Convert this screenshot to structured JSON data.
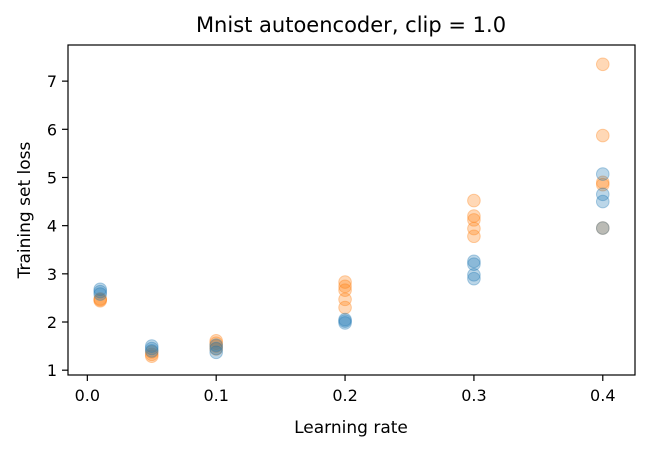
{
  "chart_data": {
    "type": "scatter",
    "title": "Mnist autoencoder, clip = 1.0",
    "xlabel": "Learning rate",
    "ylabel": "Training set loss",
    "xlim": [
      -0.015,
      0.425
    ],
    "ylim": [
      0.9,
      7.75
    ],
    "xticks": [
      0.0,
      0.1,
      0.2,
      0.3,
      0.4
    ],
    "xtick_labels": [
      "0.0",
      "0.1",
      "0.2",
      "0.3",
      "0.4"
    ],
    "yticks": [
      1,
      2,
      3,
      4,
      5,
      6,
      7
    ],
    "ytick_labels": [
      "1",
      "2",
      "3",
      "4",
      "5",
      "6",
      "7"
    ],
    "grid": false,
    "legend": "none",
    "series": [
      {
        "color": "#ff7f0e",
        "alpha": 0.3,
        "points": [
          {
            "x": 0.01,
            "y": 2.44
          },
          {
            "x": 0.01,
            "y": 2.46
          },
          {
            "x": 0.01,
            "y": 2.48
          },
          {
            "x": 0.05,
            "y": 1.29
          },
          {
            "x": 0.05,
            "y": 1.33
          },
          {
            "x": 0.05,
            "y": 1.38
          },
          {
            "x": 0.1,
            "y": 1.44
          },
          {
            "x": 0.1,
            "y": 1.5
          },
          {
            "x": 0.1,
            "y": 1.56
          },
          {
            "x": 0.1,
            "y": 1.61
          },
          {
            "x": 0.2,
            "y": 2.3
          },
          {
            "x": 0.2,
            "y": 2.47
          },
          {
            "x": 0.2,
            "y": 2.66
          },
          {
            "x": 0.2,
            "y": 2.74
          },
          {
            "x": 0.2,
            "y": 2.83
          },
          {
            "x": 0.3,
            "y": 3.78
          },
          {
            "x": 0.3,
            "y": 3.94
          },
          {
            "x": 0.3,
            "y": 4.12
          },
          {
            "x": 0.3,
            "y": 4.2
          },
          {
            "x": 0.3,
            "y": 4.52
          },
          {
            "x": 0.4,
            "y": 3.95
          },
          {
            "x": 0.4,
            "y": 4.85
          },
          {
            "x": 0.4,
            "y": 4.9
          },
          {
            "x": 0.4,
            "y": 5.87
          },
          {
            "x": 0.4,
            "y": 7.35
          }
        ]
      },
      {
        "color": "#1f77b4",
        "alpha": 0.3,
        "points": [
          {
            "x": 0.01,
            "y": 2.58
          },
          {
            "x": 0.01,
            "y": 2.63
          },
          {
            "x": 0.01,
            "y": 2.68
          },
          {
            "x": 0.05,
            "y": 1.4
          },
          {
            "x": 0.05,
            "y": 1.45
          },
          {
            "x": 0.05,
            "y": 1.5
          },
          {
            "x": 0.1,
            "y": 1.37
          },
          {
            "x": 0.1,
            "y": 1.45
          },
          {
            "x": 0.1,
            "y": 1.52
          },
          {
            "x": 0.2,
            "y": 1.98
          },
          {
            "x": 0.2,
            "y": 2.02
          },
          {
            "x": 0.2,
            "y": 2.05
          },
          {
            "x": 0.3,
            "y": 2.9
          },
          {
            "x": 0.3,
            "y": 2.98
          },
          {
            "x": 0.3,
            "y": 3.2
          },
          {
            "x": 0.3,
            "y": 3.26
          },
          {
            "x": 0.4,
            "y": 3.95
          },
          {
            "x": 0.4,
            "y": 4.5
          },
          {
            "x": 0.4,
            "y": 4.65
          },
          {
            "x": 0.4,
            "y": 5.07
          }
        ]
      }
    ]
  }
}
